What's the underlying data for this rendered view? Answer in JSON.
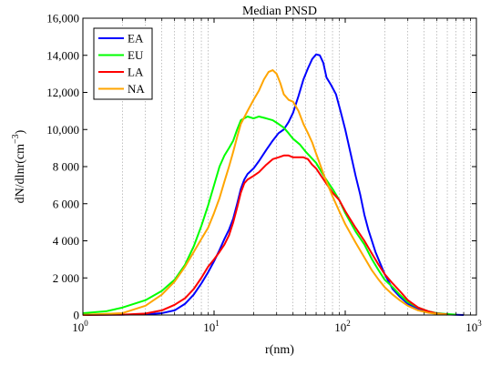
{
  "chart_data": {
    "type": "line",
    "title": "Median PNSD",
    "xlabel": "r(nm)",
    "ylabel": "dN/dlnr(cm",
    "ylabel_sup": "−3",
    "ylabel_close": ")",
    "x_scale": "log",
    "xlim": [
      1,
      1000
    ],
    "ylim": [
      0,
      16000
    ],
    "grid": "x-minor dotted",
    "legend_position": "top-left",
    "x_ticks": [
      {
        "value": 1,
        "base": "10",
        "exp": "0"
      },
      {
        "value": 10,
        "base": "10",
        "exp": "1"
      },
      {
        "value": 100,
        "base": "10",
        "exp": "2"
      },
      {
        "value": 1000,
        "base": "10",
        "exp": "3"
      }
    ],
    "y_ticks": [
      {
        "value": 0,
        "label": "0"
      },
      {
        "value": 2000,
        "label": "2 000"
      },
      {
        "value": 4000,
        "label": "4 000"
      },
      {
        "value": 6000,
        "label": "6 000"
      },
      {
        "value": 8000,
        "label": "8 000"
      },
      {
        "value": 10000,
        "label": "10,000"
      },
      {
        "value": 12000,
        "label": "12,000"
      },
      {
        "value": 14000,
        "label": "14,000"
      },
      {
        "value": 16000,
        "label": "16,000"
      }
    ],
    "series": [
      {
        "name": "EA",
        "color": "#0000ff",
        "points": [
          [
            1,
            10
          ],
          [
            2,
            20
          ],
          [
            3,
            40
          ],
          [
            4,
            100
          ],
          [
            5,
            250
          ],
          [
            6,
            600
          ],
          [
            7,
            1100
          ],
          [
            8,
            1700
          ],
          [
            9,
            2300
          ],
          [
            10,
            2900
          ],
          [
            11,
            3500
          ],
          [
            12,
            4100
          ],
          [
            13,
            4600
          ],
          [
            14,
            5200
          ],
          [
            15,
            6000
          ],
          [
            16,
            6800
          ],
          [
            17,
            7300
          ],
          [
            18,
            7600
          ],
          [
            20,
            7900
          ],
          [
            22,
            8300
          ],
          [
            25,
            8900
          ],
          [
            28,
            9400
          ],
          [
            31,
            9800
          ],
          [
            34,
            10000
          ],
          [
            37,
            10400
          ],
          [
            40,
            10900
          ],
          [
            44,
            11800
          ],
          [
            48,
            12700
          ],
          [
            52,
            13300
          ],
          [
            56,
            13800
          ],
          [
            60,
            14050
          ],
          [
            64,
            14000
          ],
          [
            68,
            13600
          ],
          [
            72,
            12800
          ],
          [
            78,
            12400
          ],
          [
            85,
            11900
          ],
          [
            92,
            11000
          ],
          [
            100,
            10000
          ],
          [
            110,
            8700
          ],
          [
            120,
            7500
          ],
          [
            130,
            6500
          ],
          [
            140,
            5400
          ],
          [
            150,
            4600
          ],
          [
            170,
            3400
          ],
          [
            200,
            2200
          ],
          [
            230,
            1400
          ],
          [
            260,
            1000
          ],
          [
            300,
            600
          ],
          [
            360,
            300
          ],
          [
            430,
            150
          ],
          [
            500,
            80
          ],
          [
            600,
            30
          ],
          [
            700,
            10
          ],
          [
            800,
            0
          ]
        ]
      },
      {
        "name": "EU",
        "color": "#00ff00",
        "points": [
          [
            1,
            100
          ],
          [
            1.5,
            200
          ],
          [
            2,
            400
          ],
          [
            3,
            800
          ],
          [
            4,
            1300
          ],
          [
            5,
            1900
          ],
          [
            6,
            2700
          ],
          [
            7,
            3700
          ],
          [
            8,
            4800
          ],
          [
            9,
            5900
          ],
          [
            10,
            7000
          ],
          [
            11,
            8000
          ],
          [
            12,
            8600
          ],
          [
            13,
            9000
          ],
          [
            14,
            9400
          ],
          [
            15,
            10000
          ],
          [
            16,
            10500
          ],
          [
            18,
            10700
          ],
          [
            20,
            10600
          ],
          [
            22,
            10700
          ],
          [
            25,
            10600
          ],
          [
            28,
            10500
          ],
          [
            31,
            10300
          ],
          [
            34,
            10100
          ],
          [
            37,
            9800
          ],
          [
            40,
            9500
          ],
          [
            45,
            9200
          ],
          [
            50,
            8800
          ],
          [
            60,
            8200
          ],
          [
            70,
            7400
          ],
          [
            80,
            6800
          ],
          [
            90,
            6200
          ],
          [
            100,
            5500
          ],
          [
            120,
            4500
          ],
          [
            140,
            3800
          ],
          [
            160,
            3000
          ],
          [
            180,
            2400
          ],
          [
            200,
            1900
          ],
          [
            230,
            1500
          ],
          [
            260,
            1100
          ],
          [
            300,
            700
          ],
          [
            360,
            400
          ],
          [
            430,
            200
          ],
          [
            500,
            100
          ],
          [
            600,
            50
          ],
          [
            700,
            20
          ]
        ]
      },
      {
        "name": "LA",
        "color": "#ff0000",
        "points": [
          [
            1,
            0
          ],
          [
            2,
            20
          ],
          [
            3,
            80
          ],
          [
            4,
            250
          ],
          [
            5,
            550
          ],
          [
            6,
            900
          ],
          [
            7,
            1400
          ],
          [
            8,
            2000
          ],
          [
            9,
            2600
          ],
          [
            10,
            3000
          ],
          [
            11,
            3400
          ],
          [
            12,
            3800
          ],
          [
            13,
            4300
          ],
          [
            14,
            5000
          ],
          [
            15,
            5800
          ],
          [
            16,
            6600
          ],
          [
            17,
            7100
          ],
          [
            18,
            7300
          ],
          [
            20,
            7500
          ],
          [
            22,
            7700
          ],
          [
            25,
            8100
          ],
          [
            28,
            8400
          ],
          [
            31,
            8500
          ],
          [
            34,
            8600
          ],
          [
            37,
            8600
          ],
          [
            40,
            8500
          ],
          [
            44,
            8500
          ],
          [
            48,
            8500
          ],
          [
            52,
            8400
          ],
          [
            56,
            8100
          ],
          [
            60,
            7900
          ],
          [
            70,
            7200
          ],
          [
            80,
            6600
          ],
          [
            90,
            6200
          ],
          [
            100,
            5600
          ],
          [
            120,
            4700
          ],
          [
            140,
            4000
          ],
          [
            160,
            3300
          ],
          [
            180,
            2700
          ],
          [
            200,
            2200
          ],
          [
            230,
            1700
          ],
          [
            260,
            1300
          ],
          [
            300,
            800
          ],
          [
            360,
            400
          ],
          [
            430,
            200
          ],
          [
            500,
            80
          ],
          [
            600,
            30
          ]
        ]
      },
      {
        "name": "NA",
        "color": "#ffa500",
        "points": [
          [
            1,
            10
          ],
          [
            2,
            100
          ],
          [
            3,
            500
          ],
          [
            4,
            1100
          ],
          [
            5,
            1800
          ],
          [
            6,
            2600
          ],
          [
            7,
            3400
          ],
          [
            8,
            4100
          ],
          [
            9,
            4700
          ],
          [
            10,
            5500
          ],
          [
            11,
            6300
          ],
          [
            12,
            7200
          ],
          [
            13,
            8000
          ],
          [
            14,
            8800
          ],
          [
            15,
            9600
          ],
          [
            16,
            10300
          ],
          [
            18,
            11000
          ],
          [
            20,
            11600
          ],
          [
            22,
            12100
          ],
          [
            24,
            12700
          ],
          [
            26,
            13100
          ],
          [
            28,
            13200
          ],
          [
            30,
            13000
          ],
          [
            32,
            12500
          ],
          [
            34,
            11900
          ],
          [
            37,
            11600
          ],
          [
            40,
            11500
          ],
          [
            44,
            11000
          ],
          [
            48,
            10300
          ],
          [
            52,
            9800
          ],
          [
            56,
            9300
          ],
          [
            60,
            8700
          ],
          [
            70,
            7400
          ],
          [
            80,
            6400
          ],
          [
            90,
            5600
          ],
          [
            100,
            4900
          ],
          [
            120,
            3900
          ],
          [
            140,
            3100
          ],
          [
            160,
            2400
          ],
          [
            180,
            1900
          ],
          [
            200,
            1500
          ],
          [
            230,
            1100
          ],
          [
            260,
            800
          ],
          [
            300,
            500
          ],
          [
            360,
            250
          ],
          [
            430,
            120
          ],
          [
            500,
            60
          ],
          [
            600,
            20
          ]
        ]
      }
    ]
  }
}
